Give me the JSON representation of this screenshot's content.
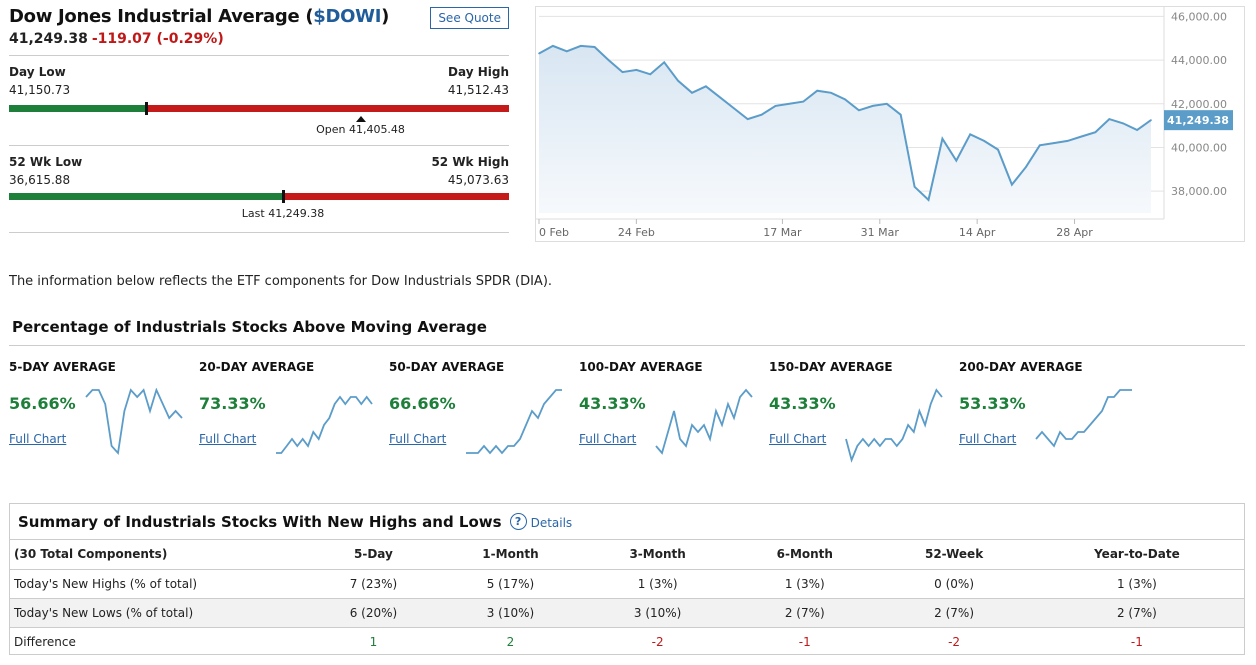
{
  "quote": {
    "title_prefix": "Dow Jones Industrial Average (",
    "symbol": "$DOWI",
    "title_suffix": ")",
    "see_quote_label": "See Quote",
    "price": "41,249.38",
    "change": "-119.07 (-0.29%)"
  },
  "day_range": {
    "low_label": "Day Low",
    "low": "41,150.73",
    "high_label": "Day High",
    "high": "41,512.43",
    "current_fraction": 0.273,
    "open_fraction": 0.703,
    "open_label": "Open 41,405.48"
  },
  "week52_range": {
    "low_label": "52 Wk Low",
    "low": "36,615.88",
    "high_label": "52 Wk High",
    "high": "45,073.63",
    "current_fraction": 0.548,
    "last_label": "Last 41,249.38"
  },
  "chart_data": {
    "type": "area",
    "x_labels": [
      "0 Feb",
      "24 Feb",
      "17 Mar",
      "31 Mar",
      "14 Apr",
      "28 Apr"
    ],
    "x_label_days": [
      0,
      14,
      35,
      49,
      63,
      77
    ],
    "y_ticks": [
      "46,000.00",
      "44,000.00",
      "42,000.00",
      "40,000.00",
      "38,000.00"
    ],
    "ylim": [
      37000,
      46200
    ],
    "x_range": [
      0,
      89
    ],
    "last_label": "41,249.38",
    "last_value": 41249.38,
    "grid": true,
    "x": [
      0,
      2,
      4,
      6,
      8,
      10,
      12,
      14,
      16,
      18,
      20,
      22,
      24,
      26,
      28,
      30,
      32,
      34,
      36,
      38,
      40,
      42,
      44,
      46,
      48,
      50,
      52,
      54,
      56,
      58,
      60,
      62,
      64,
      66,
      68,
      70,
      72,
      74,
      76,
      78,
      80,
      82,
      84,
      86,
      88
    ],
    "values": [
      44300,
      44650,
      44400,
      44650,
      44600,
      44000,
      43450,
      43550,
      43350,
      43900,
      43050,
      42500,
      42800,
      42300,
      41800,
      41300,
      41500,
      41900,
      42000,
      42100,
      42600,
      42500,
      42200,
      41700,
      41900,
      42000,
      41500,
      38200,
      37600,
      40400,
      39400,
      40600,
      40300,
      39900,
      38300,
      39100,
      40100,
      40200,
      40300,
      40500,
      40700,
      41300,
      41100,
      40800,
      41250
    ],
    "colors": {
      "line": "#5b9cc9",
      "fill_top": "#d8e6f2",
      "fill_bottom": "#f6f9fc",
      "label_bg": "#5b9cc9"
    }
  },
  "page_note": "The information below reflects the ETF components for Dow Industrials SPDR (DIA).",
  "section_title": "Percentage of Industrials Stocks Above Moving Average",
  "averages": [
    {
      "label": "5-DAY AVERAGE",
      "value": "56.66%",
      "link": "Full Chart",
      "spark": [
        9,
        10,
        10,
        8,
        2,
        1,
        7,
        10,
        9,
        10,
        7,
        10,
        8,
        6,
        7,
        6
      ]
    },
    {
      "label": "20-DAY AVERAGE",
      "value": "73.33%",
      "link": "Full Chart",
      "spark": [
        1,
        1,
        2,
        3,
        2,
        3,
        2,
        4,
        3,
        5,
        6,
        8,
        9,
        8,
        9,
        9,
        8,
        9,
        8
      ]
    },
    {
      "label": "50-DAY AVERAGE",
      "value": "66.66%",
      "link": "Full Chart",
      "spark": [
        1,
        1,
        1,
        2,
        1,
        2,
        1,
        2,
        2,
        3,
        5,
        7,
        6,
        8,
        9,
        10,
        10
      ]
    },
    {
      "label": "100-DAY AVERAGE",
      "value": "43.33%",
      "link": "Full Chart",
      "spark": [
        2,
        1,
        4,
        7,
        3,
        2,
        5,
        4,
        5,
        3,
        7,
        5,
        8,
        6,
        9,
        10,
        9
      ]
    },
    {
      "label": "150-DAY AVERAGE",
      "value": "43.33%",
      "link": "Full Chart",
      "spark": [
        3,
        0,
        2,
        3,
        2,
        3,
        2,
        3,
        3,
        2,
        3,
        5,
        4,
        7,
        5,
        8,
        10,
        9
      ]
    },
    {
      "label": "200-DAY AVERAGE",
      "value": "53.33%",
      "link": "Full Chart",
      "spark": [
        3,
        4,
        3,
        2,
        4,
        3,
        3,
        4,
        4,
        5,
        6,
        7,
        9,
        9,
        10,
        10,
        10
      ]
    }
  ],
  "summary": {
    "title": "Summary of Industrials Stocks With New Highs and Lows",
    "help_glyph": "?",
    "details_label": "Details",
    "columns": [
      "(30 Total Components)",
      "5-Day",
      "1-Month",
      "3-Month",
      "6-Month",
      "52-Week",
      "Year-to-Date"
    ],
    "rows": [
      {
        "label": "Today's New Highs (% of total)",
        "cells": [
          "7 (23%)",
          "5 (17%)",
          "1 (3%)",
          "1 (3%)",
          "0 (0%)",
          "1 (3%)"
        ]
      },
      {
        "label": "Today's New Lows (% of total)",
        "cells": [
          "6 (20%)",
          "3 (10%)",
          "3 (10%)",
          "2 (7%)",
          "2 (7%)",
          "2 (7%)"
        ]
      },
      {
        "label": "Difference",
        "cells": [
          "1",
          "2",
          "-2",
          "-1",
          "-2",
          "-1"
        ]
      }
    ]
  }
}
